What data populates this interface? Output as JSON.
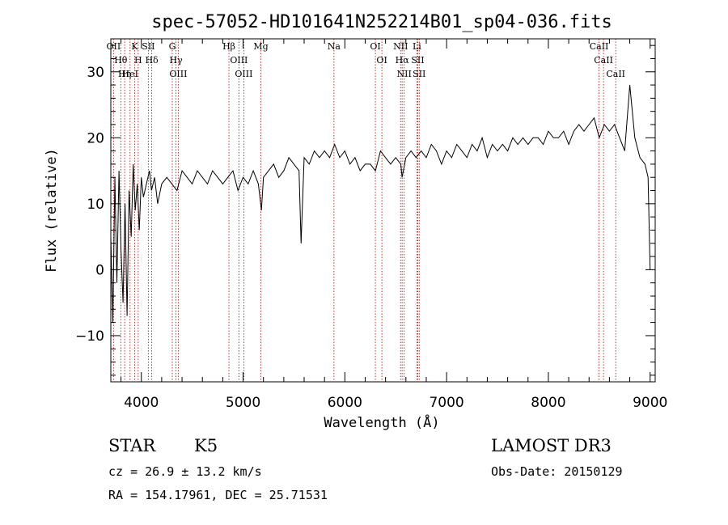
{
  "chart_data": {
    "type": "line",
    "title": "spec-57052-HD101641N252214B01_sp04-036.fits",
    "xlabel": "Wavelength (Å)",
    "ylabel": "Flux (relative)",
    "xlim": [
      3700,
      9050
    ],
    "ylim": [
      -17,
      35
    ],
    "xticks": [
      4000,
      5000,
      6000,
      7000,
      8000,
      9000
    ],
    "yticks": [
      -10,
      0,
      10,
      20,
      30
    ],
    "grid": false,
    "series": [
      {
        "name": "flux",
        "color": "#000000",
        "x": [
          3700,
          3720,
          3740,
          3760,
          3780,
          3800,
          3820,
          3840,
          3860,
          3880,
          3900,
          3920,
          3940,
          3960,
          3980,
          4000,
          4020,
          4050,
          4080,
          4100,
          4130,
          4160,
          4200,
          4250,
          4300,
          4350,
          4400,
          4450,
          4500,
          4550,
          4600,
          4650,
          4700,
          4750,
          4800,
          4850,
          4900,
          4950,
          5000,
          5050,
          5100,
          5150,
          5180,
          5200,
          5250,
          5300,
          5350,
          5400,
          5450,
          5500,
          5550,
          5570,
          5600,
          5650,
          5700,
          5750,
          5800,
          5850,
          5900,
          5950,
          6000,
          6050,
          6100,
          6150,
          6200,
          6250,
          6300,
          6350,
          6400,
          6450,
          6500,
          6550,
          6563,
          6600,
          6650,
          6700,
          6750,
          6800,
          6850,
          6900,
          6950,
          7000,
          7050,
          7100,
          7150,
          7200,
          7250,
          7300,
          7350,
          7400,
          7450,
          7500,
          7550,
          7600,
          7650,
          7700,
          7750,
          7800,
          7850,
          7900,
          7950,
          8000,
          8050,
          8100,
          8150,
          8200,
          8250,
          8300,
          8350,
          8400,
          8450,
          8500,
          8550,
          8600,
          8650,
          8700,
          8750,
          8800,
          8850,
          8900,
          8950,
          8980,
          9000
        ],
        "y": [
          5,
          -8,
          14,
          -2,
          15,
          3,
          -5,
          10,
          -7,
          12,
          5,
          16,
          9,
          13,
          6,
          14,
          11,
          13,
          15,
          12,
          14,
          10,
          13,
          14,
          13,
          12,
          15,
          14,
          13,
          15,
          14,
          13,
          15,
          14,
          13,
          14,
          15,
          12,
          14,
          13,
          15,
          13,
          9,
          14,
          15,
          16,
          14,
          15,
          17,
          16,
          15,
          4,
          17,
          16,
          18,
          17,
          18,
          17,
          19,
          17,
          18,
          16,
          17,
          15,
          16,
          16,
          15,
          18,
          17,
          16,
          17,
          16,
          14,
          17,
          18,
          17,
          18,
          17,
          19,
          18,
          16,
          18,
          17,
          19,
          18,
          17,
          19,
          18,
          20,
          17,
          19,
          18,
          19,
          18,
          20,
          19,
          20,
          19,
          20,
          20,
          19,
          21,
          20,
          20,
          21,
          19,
          21,
          22,
          21,
          22,
          23,
          20,
          22,
          21,
          22,
          20,
          18,
          28,
          20,
          17,
          16,
          14,
          0
        ]
      }
    ],
    "lines": [
      {
        "label": "Hθ",
        "x": 3798
      },
      {
        "label": "OII",
        "x": 3727
      },
      {
        "label": "Hη",
        "x": 3836
      },
      {
        "label": "K",
        "x": 3934
      },
      {
        "label": "HeI",
        "x": 3889
      },
      {
        "label": "H",
        "x": 3969
      },
      {
        "label": "SII",
        "x": 4069
      },
      {
        "label": "Hδ",
        "x": 4102
      },
      {
        "label": "OIII",
        "x": 4363
      },
      {
        "label": "Hγ",
        "x": 4340
      },
      {
        "label": "G",
        "x": 4304
      },
      {
        "label": "Hβ",
        "x": 4861
      },
      {
        "label": "OIII",
        "x": 4959
      },
      {
        "label": "OIII",
        "x": 5007
      },
      {
        "label": "Mg",
        "x": 5175
      },
      {
        "label": "Na",
        "x": 5893
      },
      {
        "label": "OI",
        "x": 6300
      },
      {
        "label": "OI",
        "x": 6364
      },
      {
        "label": "Hα",
        "x": 6563
      },
      {
        "label": "NII",
        "x": 6548
      },
      {
        "label": "NII",
        "x": 6583
      },
      {
        "label": "SII",
        "x": 6717
      },
      {
        "label": "Li",
        "x": 6708
      },
      {
        "label": "SII",
        "x": 6731
      },
      {
        "label": "CaII",
        "x": 8542
      },
      {
        "label": "CaII",
        "x": 8498
      },
      {
        "label": "CaII",
        "x": 8662
      }
    ]
  },
  "info": {
    "object": "STAR",
    "subclass": "K5",
    "survey": "LAMOST DR3",
    "cz": "cz = 26.9 ± 13.2 km/s",
    "obsdate": "Obs-Date: 20150129",
    "coords": "RA = 154.17961, DEC =  25.71531"
  }
}
